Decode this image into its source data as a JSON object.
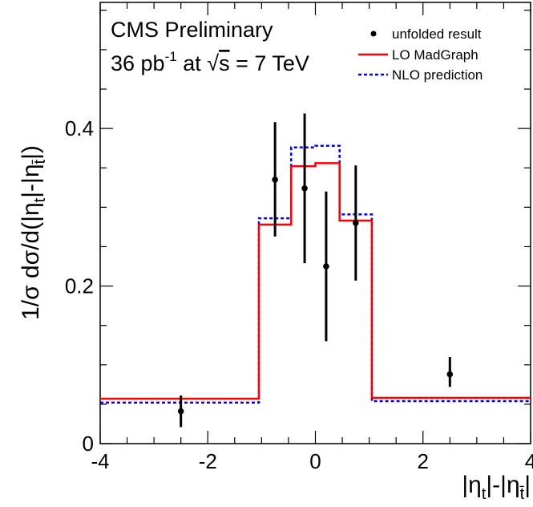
{
  "chart_data": {
    "type": "line",
    "annotations": [
      "CMS Preliminary"
    ],
    "lumi": {
      "prefix": "36 pb",
      "exponent": "-1",
      "middle": " at ",
      "sqrt_arg": "s",
      "suffix": " = 7 TeV"
    },
    "xlim": [
      -4,
      4
    ],
    "ylim": [
      0,
      0.56
    ],
    "x_ticks": [
      -4,
      -2,
      0,
      2,
      4
    ],
    "x_tick_labels": [
      "-4",
      "-2",
      "0",
      "2",
      "4"
    ],
    "y_ticks": [
      0,
      0.2,
      0.4
    ],
    "y_tick_labels": [
      "0",
      "0.2",
      "0.4"
    ],
    "grid": false,
    "legend_position": "top-right",
    "legend": [
      {
        "name": "unfolded result",
        "style": "marker"
      },
      {
        "name": "LO MadGraph",
        "style": "solid",
        "color": "#ff0000"
      },
      {
        "name": "NLO prediction",
        "style": "dashed",
        "color": "#0000ff"
      }
    ],
    "bin_edges": [
      -4,
      -1.05,
      -0.45,
      0,
      0.45,
      1.05,
      4
    ],
    "series": [
      {
        "name": "unfolded result",
        "type": "points",
        "color": "#000000",
        "x": [
          -2.5,
          -0.75,
          -0.2,
          0.2,
          0.75,
          2.5
        ],
        "y": [
          0.041,
          0.335,
          0.324,
          0.225,
          0.28,
          0.088
        ],
        "yerr_low": [
          0.02,
          0.072,
          0.095,
          0.095,
          0.073,
          0.016
        ],
        "yerr_high": [
          0.02,
          0.073,
          0.095,
          0.095,
          0.073,
          0.022
        ]
      },
      {
        "name": "LO MadGraph",
        "type": "step",
        "color": "#ff0000",
        "values": [
          0.057,
          0.278,
          0.352,
          0.356,
          0.283,
          0.058
        ]
      },
      {
        "name": "NLO prediction",
        "type": "step",
        "color": "#0000ff",
        "values": [
          0.052,
          0.286,
          0.376,
          0.378,
          0.291,
          0.054
        ]
      }
    ]
  }
}
